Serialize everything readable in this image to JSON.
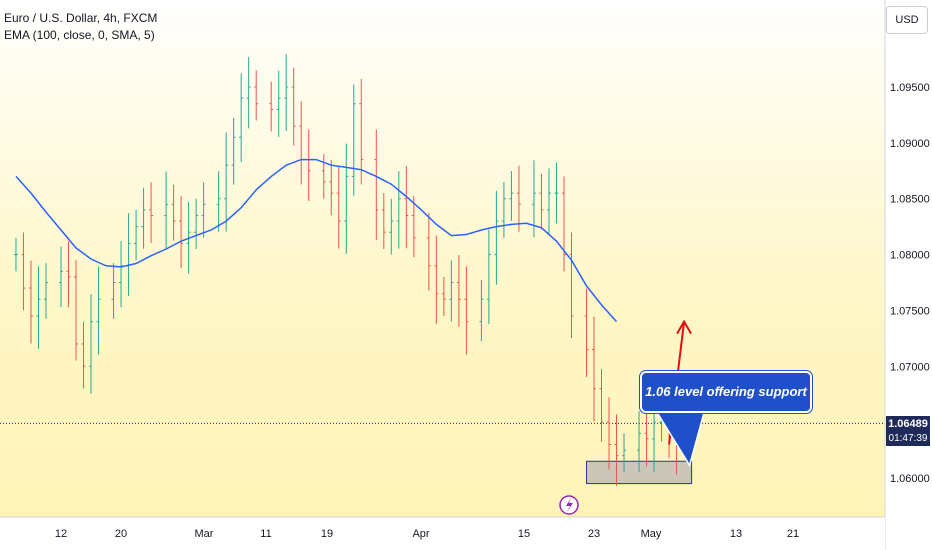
{
  "legend": {
    "symbol_line": "Euro / U.S. Dollar, 4h, FXCM",
    "indicator_line": "EMA (100, close, 0, SMA, 5)"
  },
  "currency_button": "USD",
  "price_tag": {
    "price": "1.06489",
    "countdown": "01:47:39"
  },
  "annotation": {
    "text": "1.06 level offering support"
  },
  "colors": {
    "up": "#26a69a",
    "down": "#ef5350",
    "ema": "#2962ff",
    "arrow": "#e01010",
    "support_box": "#8e8fb8",
    "callout": "#1f4fc9"
  },
  "chart_data": {
    "type": "line",
    "title": "Euro / U.S. Dollar, 4h, FXCM",
    "y_axis": {
      "ticks": [
        1.06,
        1.065,
        1.07,
        1.075,
        1.08,
        1.085,
        1.09,
        1.095
      ],
      "tick_labels": [
        "1.06000",
        "1.06500",
        "1.07000",
        "1.07500",
        "1.08000",
        "1.08500",
        "1.09000",
        "1.09500"
      ],
      "shown_labels": [
        "1.06000",
        "1.07000",
        "1.07500",
        "1.08000",
        "1.08500",
        "1.09000",
        "1.09500"
      ],
      "range": [
        1.0555,
        1.1015
      ]
    },
    "x_axis": {
      "labels": [
        "12",
        "20",
        "Mar",
        "11",
        "19",
        "Apr",
        "15",
        "23",
        "May",
        "13",
        "21"
      ]
    },
    "grid": false,
    "series": [
      {
        "name": "Euro / U.S. Dollar",
        "style": "high-low bars",
        "points": [
          [
            "2024-02-06",
            1.08
          ],
          [
            "2024-02-07",
            1.077
          ],
          [
            "2024-02-08",
            1.0745
          ],
          [
            "2024-02-09",
            1.076
          ],
          [
            "2024-02-10",
            1.0775
          ],
          [
            "2024-02-12",
            1.0785
          ],
          [
            "2024-02-13",
            1.078
          ],
          [
            "2024-02-14",
            1.072
          ],
          [
            "2024-02-15",
            1.07
          ],
          [
            "2024-02-16",
            1.074
          ],
          [
            "2024-02-17",
            1.076
          ],
          [
            "2024-02-19",
            1.0775
          ],
          [
            "2024-02-20",
            1.079
          ],
          [
            "2024-02-21",
            1.081
          ],
          [
            "2024-02-22",
            1.0825
          ],
          [
            "2024-02-23",
            1.084
          ],
          [
            "2024-02-24",
            1.0835
          ],
          [
            "2024-02-26",
            1.0845
          ],
          [
            "2024-02-27",
            1.083
          ],
          [
            "2024-02-28",
            1.081
          ],
          [
            "2024-02-29",
            1.082
          ],
          [
            "2024-03-01",
            1.0835
          ],
          [
            "2024-03-02",
            1.0845
          ],
          [
            "2024-03-04",
            1.085
          ],
          [
            "2024-03-05",
            1.088
          ],
          [
            "2024-03-06",
            1.0905
          ],
          [
            "2024-03-07",
            1.094
          ],
          [
            "2024-03-08",
            1.095
          ],
          [
            "2024-03-09",
            1.0935
          ],
          [
            "2024-03-11",
            1.093
          ],
          [
            "2024-03-12",
            1.094
          ],
          [
            "2024-03-13",
            1.095
          ],
          [
            "2024-03-14",
            1.0915
          ],
          [
            "2024-03-15",
            1.0885
          ],
          [
            "2024-03-16",
            1.0875
          ],
          [
            "2024-03-18",
            1.0865
          ],
          [
            "2024-03-19",
            1.0855
          ],
          [
            "2024-03-20",
            1.083
          ],
          [
            "2024-03-21",
            1.087
          ],
          [
            "2024-03-22",
            1.0935
          ],
          [
            "2024-03-23",
            1.0885
          ],
          [
            "2024-03-25",
            1.084
          ],
          [
            "2024-03-26",
            1.082
          ],
          [
            "2024-03-27",
            1.083
          ],
          [
            "2024-03-28",
            1.085
          ],
          [
            "2024-03-29",
            1.0835
          ],
          [
            "2024-03-30",
            1.0815
          ],
          [
            "2024-04-01",
            1.079
          ],
          [
            "2024-04-02",
            1.0765
          ],
          [
            "2024-04-03",
            1.076
          ],
          [
            "2024-04-04",
            1.0775
          ],
          [
            "2024-04-05",
            1.076
          ],
          [
            "2024-04-06",
            1.074
          ],
          [
            "2024-04-08",
            1.076
          ],
          [
            "2024-04-09",
            1.08
          ],
          [
            "2024-04-10",
            1.083
          ],
          [
            "2024-04-11",
            1.085
          ],
          [
            "2024-04-12",
            1.0855
          ],
          [
            "2024-04-13",
            1.0845
          ],
          [
            "2024-04-15",
            1.0855
          ],
          [
            "2024-04-16",
            1.084
          ],
          [
            "2024-04-17",
            1.0855
          ],
          [
            "2024-04-18",
            1.0855
          ],
          [
            "2024-04-19",
            1.08
          ],
          [
            "2024-04-20",
            1.0745
          ],
          [
            "2024-04-22",
            1.0715
          ],
          [
            "2024-04-23",
            1.068
          ],
          [
            "2024-04-24",
            1.065
          ],
          [
            "2024-04-25",
            1.063
          ],
          [
            "2024-04-26",
            1.062
          ],
          [
            "2024-04-27",
            1.0625
          ],
          [
            "2024-04-29",
            1.064
          ],
          [
            "2024-04-30",
            1.0635
          ],
          [
            "2024-05-01",
            1.065
          ],
          [
            "2024-05-02",
            1.0665
          ],
          [
            "2024-05-03",
            1.064
          ],
          [
            "2024-05-04",
            1.063
          ]
        ]
      },
      {
        "name": "EMA (100, close, 0, SMA, 5)",
        "style": "line",
        "points": [
          [
            "2024-02-06",
            1.087
          ],
          [
            "2024-02-08",
            1.0855
          ],
          [
            "2024-02-10",
            1.0838
          ],
          [
            "2024-02-12",
            1.0822
          ],
          [
            "2024-02-14",
            1.0806
          ],
          [
            "2024-02-16",
            1.0796
          ],
          [
            "2024-02-18",
            1.079
          ],
          [
            "2024-02-20",
            1.0789
          ],
          [
            "2024-02-22",
            1.0792
          ],
          [
            "2024-02-24",
            1.0799
          ],
          [
            "2024-02-26",
            1.0805
          ],
          [
            "2024-02-28",
            1.0812
          ],
          [
            "2024-03-01",
            1.0817
          ],
          [
            "2024-03-03",
            1.0822
          ],
          [
            "2024-03-05",
            1.083
          ],
          [
            "2024-03-07",
            1.0842
          ],
          [
            "2024-03-09",
            1.0858
          ],
          [
            "2024-03-11",
            1.087
          ],
          [
            "2024-03-13",
            1.088
          ],
          [
            "2024-03-15",
            1.0885
          ],
          [
            "2024-03-17",
            1.0885
          ],
          [
            "2024-03-19",
            1.088
          ],
          [
            "2024-03-21",
            1.0878
          ],
          [
            "2024-03-23",
            1.0876
          ],
          [
            "2024-03-25",
            1.087
          ],
          [
            "2024-03-27",
            1.0863
          ],
          [
            "2024-03-29",
            1.0852
          ],
          [
            "2024-03-31",
            1.084
          ],
          [
            "2024-04-02",
            1.0827
          ],
          [
            "2024-04-04",
            1.0817
          ],
          [
            "2024-04-06",
            1.0818
          ],
          [
            "2024-04-08",
            1.0822
          ],
          [
            "2024-04-10",
            1.0825
          ],
          [
            "2024-04-12",
            1.0827
          ],
          [
            "2024-04-14",
            1.0828
          ],
          [
            "2024-04-16",
            1.0824
          ],
          [
            "2024-04-18",
            1.0812
          ],
          [
            "2024-04-20",
            1.0795
          ],
          [
            "2024-04-22",
            1.0772
          ],
          [
            "2024-04-24",
            1.0755
          ],
          [
            "2024-04-26",
            1.074
          ]
        ]
      }
    ],
    "current_price": 1.06489,
    "support_zone": {
      "from": 1.0595,
      "to": 1.0615,
      "start": "2024-04-22",
      "end": "2024-05-06"
    },
    "projection_arrow": {
      "from": [
        "2024-05-03",
        1.063
      ],
      "to": [
        "2024-05-05",
        1.074
      ]
    },
    "annotations": [
      "1.06 level offering support"
    ]
  }
}
